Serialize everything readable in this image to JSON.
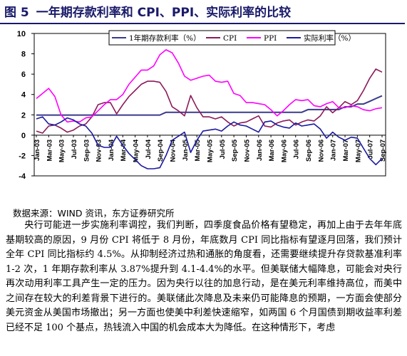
{
  "figure": {
    "number": "图 5",
    "title": "一年期存款利率和 CPI、PPI、实际利率的比较"
  },
  "source": "数据来源：WIND 资讯，东方证券研究所",
  "paragraph": "央行可能进一步实施利率调控，我们判断，四季度食品价格有望稳定，再加上由于去年年底基期较高的原因，9 月份 CPI 将低于 8 月份，年底数月 CPI 同比指标有望逐月回落，我们预计全年 CPI 同比指标约 4.5%。从抑制经济过热和通胀的角度看，还需要继续提升存贷款基准利率 1-2 次，1 年期存款利率从 3.87%提升到 4.1-4.4%的水平。但美联储大幅降息，可能会对央行再次动用利率工具产生一定的压力。因为央行以往的加息行动，是在美元利率维持高位，而美中之间存在较大的利差背景下进行的。美联储此次降息及未来仍可能降息的预期，一方面会使部分美元资金从美国市场撤出；另一方面也使美中利差快速缩窄，如两国 6 个月国债到期收益率利差已经不足 100 个基点，热钱流入中国的机会成本大为降低。在这种情形下，考虑",
  "chart_data": {
    "type": "line",
    "ylim": [
      -4,
      10
    ],
    "yticks": [
      10,
      8,
      6,
      4,
      2,
      0,
      -2,
      -4
    ],
    "x_tick_labels": [
      "Jan-03",
      "Mar-03",
      "May-03",
      "Jul-03",
      "Sep-03",
      "Nov-03",
      "Jan-04",
      "Mar-04",
      "May-04",
      "Jul-04",
      "Sep-04",
      "Nov-04",
      "Jan-05",
      "Mar-05",
      "May-05",
      "Jul-05",
      "Sep-05",
      "Nov-05",
      "Jan-06",
      "Mar-06",
      "May-06",
      "Jul-06",
      "Sep-06",
      "Nov-06",
      "Jan-07",
      "Mar-07",
      "May-07",
      "Jul-07",
      "Sep-07"
    ],
    "x": [
      "Jan-03",
      "Feb-03",
      "Mar-03",
      "Apr-03",
      "May-03",
      "Jun-03",
      "Jul-03",
      "Aug-03",
      "Sep-03",
      "Oct-03",
      "Nov-03",
      "Dec-03",
      "Jan-04",
      "Feb-04",
      "Mar-04",
      "Apr-04",
      "May-04",
      "Jun-04",
      "Jul-04",
      "Aug-04",
      "Sep-04",
      "Oct-04",
      "Nov-04",
      "Dec-04",
      "Jan-05",
      "Feb-05",
      "Mar-05",
      "Apr-05",
      "May-05",
      "Jun-05",
      "Jul-05",
      "Aug-05",
      "Sep-05",
      "Oct-05",
      "Nov-05",
      "Dec-05",
      "Jan-06",
      "Feb-06",
      "Mar-06",
      "Apr-06",
      "May-06",
      "Jun-06",
      "Jul-06",
      "Aug-06",
      "Sep-06",
      "Oct-06",
      "Nov-06",
      "Dec-06",
      "Jan-07",
      "Feb-07",
      "Mar-07",
      "Apr-07",
      "May-07",
      "Jun-07",
      "Jul-07",
      "Aug-07",
      "Sep-07"
    ],
    "series": [
      {
        "name": "1年期存款利率（%）",
        "color": "#3a3a8c",
        "values": [
          1.98,
          1.98,
          1.98,
          1.98,
          1.98,
          1.98,
          1.98,
          1.98,
          1.98,
          1.98,
          1.98,
          1.98,
          1.98,
          1.98,
          1.98,
          1.98,
          1.98,
          1.98,
          1.98,
          1.98,
          1.98,
          2.25,
          2.25,
          2.25,
          2.25,
          2.25,
          2.25,
          2.25,
          2.25,
          2.25,
          2.25,
          2.25,
          2.25,
          2.25,
          2.25,
          2.25,
          2.25,
          2.25,
          2.25,
          2.25,
          2.25,
          2.25,
          2.25,
          2.25,
          2.52,
          2.52,
          2.52,
          2.52,
          2.52,
          2.52,
          2.79,
          2.79,
          3.06,
          3.06,
          3.33,
          3.6,
          3.87
        ]
      },
      {
        "name": "CPI",
        "color": "#8b1a5a",
        "values": [
          0.4,
          0.2,
          0.9,
          1.0,
          0.7,
          0.3,
          0.5,
          0.9,
          1.1,
          1.8,
          3.0,
          3.2,
          3.2,
          2.1,
          3.0,
          3.8,
          4.4,
          5.0,
          5.3,
          5.3,
          5.2,
          4.3,
          2.8,
          2.4,
          1.9,
          3.9,
          2.7,
          1.8,
          1.8,
          1.6,
          1.8,
          1.3,
          0.9,
          1.2,
          1.3,
          1.6,
          1.9,
          0.9,
          0.8,
          1.2,
          1.4,
          1.5,
          1.0,
          1.3,
          1.5,
          1.4,
          1.9,
          2.8,
          2.2,
          2.7,
          3.3,
          3.0,
          3.4,
          4.4,
          5.6,
          6.5,
          6.2
        ]
      },
      {
        "name": "PPI",
        "color": "#ff00ff",
        "values": [
          3.6,
          4.1,
          4.6,
          3.8,
          2.0,
          1.3,
          1.4,
          1.3,
          1.7,
          1.8,
          2.4,
          3.0,
          3.5,
          3.5,
          4.0,
          5.0,
          5.7,
          6.4,
          6.4,
          6.8,
          7.9,
          8.4,
          8.1,
          7.1,
          5.8,
          5.4,
          5.6,
          5.8,
          5.9,
          5.3,
          5.2,
          5.3,
          4.1,
          3.9,
          3.2,
          3.2,
          3.1,
          3.0,
          2.5,
          1.9,
          2.4,
          3.0,
          3.5,
          3.4,
          3.5,
          2.9,
          2.8,
          3.1,
          3.3,
          2.7,
          2.7,
          2.9,
          2.8,
          2.5,
          2.4,
          2.6,
          2.7
        ]
      },
      {
        "name": "实际利率（%）",
        "color": "#1a1aa0",
        "values": [
          1.6,
          1.8,
          1.1,
          1.0,
          1.3,
          1.7,
          1.5,
          1.1,
          0.9,
          0.2,
          -1.0,
          -1.2,
          -1.2,
          -0.1,
          -1.0,
          -1.8,
          -2.4,
          -3.0,
          -3.3,
          -3.3,
          -3.2,
          -2.0,
          -0.5,
          -0.1,
          0.3,
          -1.7,
          -0.5,
          0.4,
          0.5,
          0.6,
          0.4,
          0.9,
          1.3,
          1.0,
          0.9,
          0.6,
          0.3,
          1.3,
          1.4,
          1.0,
          0.8,
          0.7,
          1.2,
          0.9,
          1.0,
          1.1,
          0.6,
          -0.3,
          0.3,
          -0.2,
          -0.5,
          -0.2,
          -0.3,
          -1.3,
          -2.3,
          -2.9,
          -2.3
        ]
      }
    ]
  }
}
